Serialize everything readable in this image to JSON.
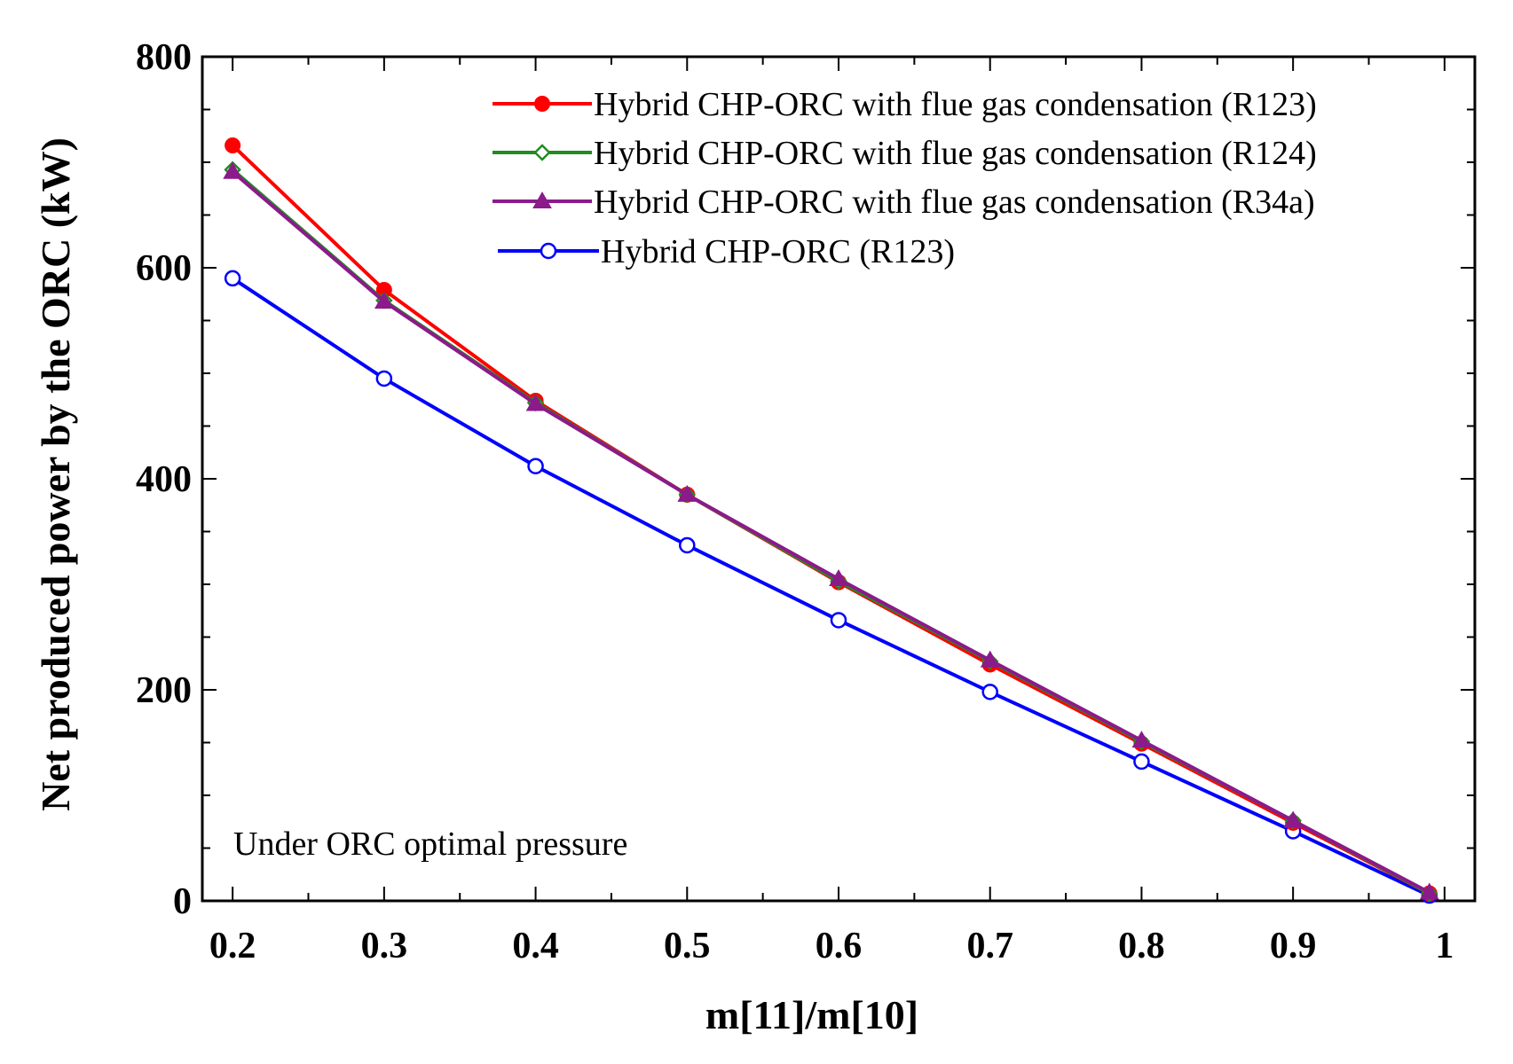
{
  "chart_data": {
    "type": "line",
    "title": "",
    "xlabel": "m[11]/m[10]",
    "ylabel": "Net produced power by the ORC (kW)",
    "xlim": [
      0.18,
      1.02
    ],
    "ylim": [
      0,
      800
    ],
    "xticks": [
      0.2,
      0.3,
      0.4,
      0.5,
      0.6,
      0.7,
      0.8,
      0.9,
      1
    ],
    "xtick_labels": [
      "0.2",
      "0.3",
      "0.4",
      "0.5",
      "0.6",
      "0.7",
      "0.8",
      "0.9",
      "1"
    ],
    "yticks": [
      0,
      200,
      400,
      600,
      800
    ],
    "ytick_labels": [
      "0",
      "200",
      "400",
      "600",
      "800"
    ],
    "grid": false,
    "legend_position": "top-right",
    "annotation": "Under ORC optimal pressure",
    "x": [
      0.2,
      0.3,
      0.4,
      0.5,
      0.6,
      0.7,
      0.8,
      0.9,
      0.99
    ],
    "series": [
      {
        "name": "Hybrid CHP-ORC with flue gas condensation (R123)",
        "color": "#ff0000",
        "marker": "filled-circle",
        "values": [
          716,
          579,
          474,
          385,
          302,
          224,
          149,
          74,
          7
        ]
      },
      {
        "name": "Hybrid CHP-ORC with flue gas condensation (R124)",
        "color": "#228b22",
        "marker": "open-diamond",
        "values": [
          693,
          569,
          472,
          385,
          303,
          227,
          151,
          76,
          7
        ]
      },
      {
        "name": "Hybrid CHP-ORC with flue gas condensation (R34a)",
        "color": "#8b1a8b",
        "marker": "filled-triangle",
        "values": [
          691,
          568,
          471,
          385,
          305,
          228,
          152,
          76,
          8
        ]
      },
      {
        "name": "Hybrid CHP-ORC (R123)",
        "color": "#0000ff",
        "marker": "open-circle",
        "values": [
          590,
          495,
          412,
          337,
          266,
          198,
          132,
          66,
          5
        ]
      }
    ]
  }
}
